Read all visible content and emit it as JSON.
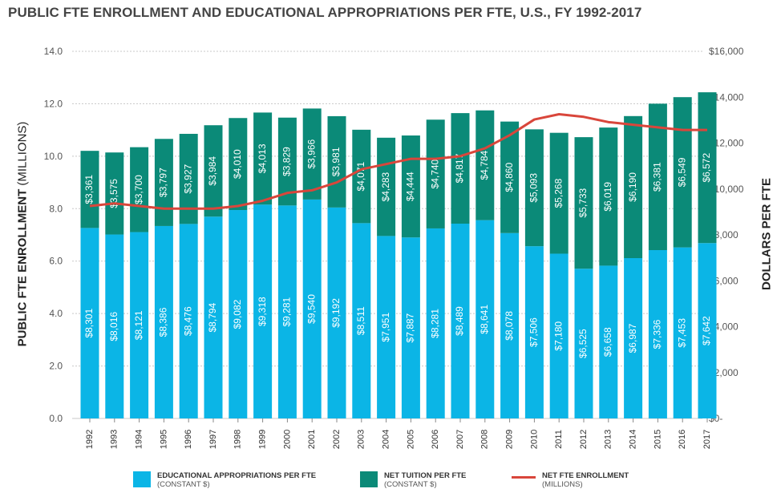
{
  "title": "PUBLIC FTE ENROLLMENT AND EDUCATIONAL APPROPRIATIONS PER FTE, U.S., FY 1992-2017",
  "left_axis_label_bold": "PUBLIC FTE ENROLLMENT",
  "left_axis_label_rest": " (MILLIONS)",
  "right_axis_label": "DOLLARS PER FTE",
  "colors": {
    "appropriations": "#0bb5e6",
    "tuition": "#0b8a78",
    "enrollment": "#d9463b",
    "grid": "#c8c8c8",
    "tick": "#555555"
  },
  "legend": {
    "appropriations_main": "EDUCATIONAL APPROPRIATIONS PER FTE",
    "appropriations_sub": "(CONSTANT $)",
    "tuition_main": "NET TUITION PER FTE",
    "tuition_sub": "(CONSTANT $)",
    "enrollment_main": "NET FTE ENROLLMENT",
    "enrollment_sub": "(MILLIONS)"
  },
  "chart_data": {
    "type": "bar",
    "stacked": true,
    "categories": [
      "1992",
      "1993",
      "1994",
      "1995",
      "1996",
      "1997",
      "1998",
      "1999",
      "2000",
      "2001",
      "2002",
      "2003",
      "2004",
      "2005",
      "2006",
      "2007",
      "2008",
      "2009",
      "2010",
      "2011",
      "2012",
      "2013",
      "2014",
      "2015",
      "2016",
      "2017"
    ],
    "series": [
      {
        "name": "EDUCATIONAL APPROPRIATIONS PER FTE",
        "axis": "right",
        "values": [
          8301,
          8016,
          8121,
          8386,
          8476,
          8794,
          9082,
          9318,
          9281,
          9540,
          9192,
          8511,
          7951,
          7887,
          8281,
          8489,
          8641,
          8078,
          7506,
          7180,
          6525,
          6658,
          6987,
          7336,
          7453,
          7642
        ],
        "labels": [
          "$8,301",
          "$8,016",
          "$8,121",
          "$8,386",
          "$8,476",
          "$8,794",
          "$9,082",
          "$9,318",
          "$9,281",
          "$9,540",
          "$9,192",
          "$8,511",
          "$7,951",
          "$7,887",
          "$8,281",
          "$8,489",
          "$8,641",
          "$8,078",
          "$7,506",
          "$7,180",
          "$6,525",
          "$6,658",
          "$6,987",
          "$7,336",
          "$7,453",
          "$7,642"
        ]
      },
      {
        "name": "NET TUITION PER FTE",
        "axis": "right",
        "values": [
          3361,
          3575,
          3700,
          3797,
          3927,
          3984,
          4010,
          4013,
          3829,
          3966,
          3981,
          4071,
          4283,
          4444,
          4740,
          4817,
          4784,
          4860,
          5093,
          5268,
          5733,
          6019,
          6190,
          6381,
          6549,
          6572
        ],
        "labels": [
          "$3,361",
          "$3,575",
          "$3,700",
          "$3,797",
          "$3,927",
          "$3,984",
          "$4,010",
          "$4,013",
          "$3,829",
          "$3,966",
          "$3,981",
          "$4,071",
          "$4,283",
          "$4,444",
          "$4,740",
          "$4,817",
          "$4,784",
          "$4,860",
          "$5,093",
          "$5,268",
          "$5,733",
          "$6,019",
          "$6,190",
          "$6,381",
          "$6,549",
          "$6,572"
        ]
      },
      {
        "name": "NET FTE ENROLLMENT",
        "type": "line",
        "axis": "left",
        "values": [
          8.1,
          8.2,
          8.1,
          8.0,
          8.0,
          8.0,
          8.1,
          8.3,
          8.6,
          8.7,
          9.0,
          9.5,
          9.7,
          9.9,
          9.9,
          10.0,
          10.3,
          10.8,
          11.4,
          11.6,
          11.5,
          11.3,
          11.2,
          11.1,
          11.0,
          11.0
        ]
      }
    ],
    "left_axis": {
      "ylim": [
        0,
        14
      ],
      "ticks": [
        "0.0",
        "2.0",
        "4.0",
        "6.0",
        "8.0",
        "10.0",
        "12.0",
        "14.0"
      ]
    },
    "right_axis": {
      "ylim": [
        0,
        16000
      ],
      "ticks": [
        "$0-",
        "$2,000",
        "$4,000",
        "$6,000",
        "$8,000",
        "$10,000",
        "$12,000",
        "$14,000",
        "$16,000"
      ]
    },
    "grid": true,
    "legend_position": "bottom"
  }
}
